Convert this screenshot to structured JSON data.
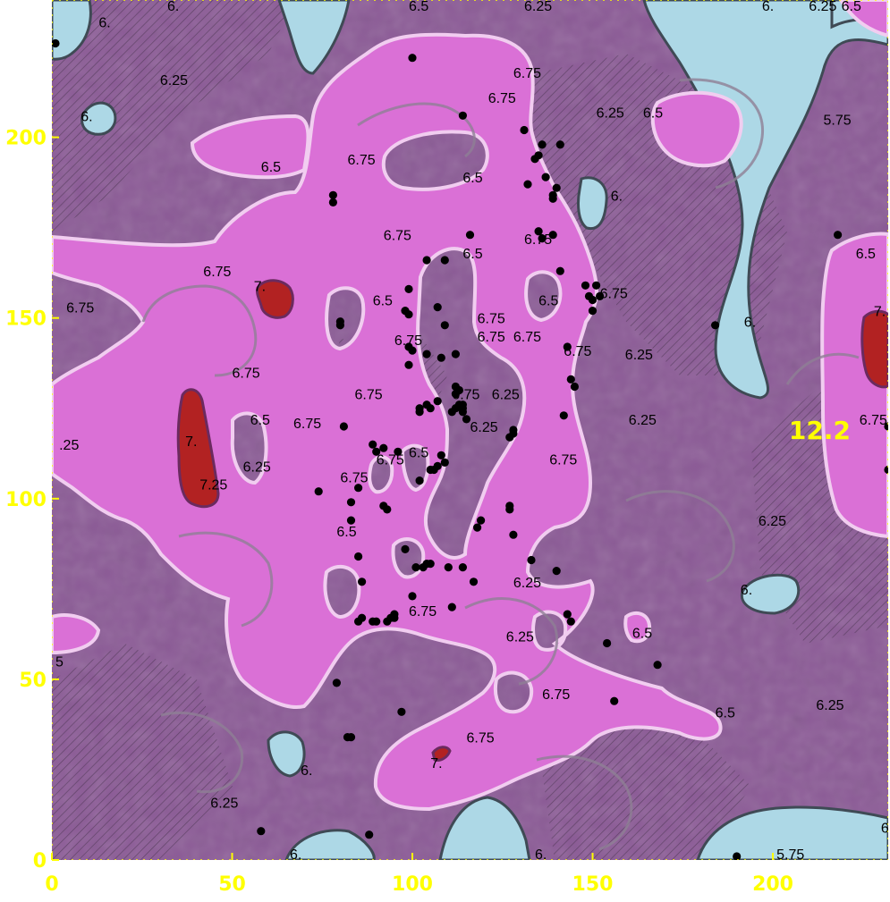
{
  "chart_data": {
    "type": "contour",
    "title": "",
    "xlabel": "",
    "ylabel": "",
    "xlim": [
      0,
      232
    ],
    "ylim": [
      0,
      238
    ],
    "x_ticks": [
      0,
      50,
      100,
      150,
      200
    ],
    "y_ticks": [
      0,
      50,
      100,
      150,
      200
    ],
    "grid": false,
    "legend": "none",
    "annotation": {
      "text": "12.2",
      "x": 213,
      "y": 119
    },
    "colors": {
      "level_lt_6": "#add8e6",
      "level_6_6_5": "#8b5a96",
      "level_6_5_7": "#da70d6",
      "level_gt_7": "#b22222",
      "tick_text": "#ffff00",
      "points": "#000000"
    },
    "contour_labels": [
      {
        "text": "6.25",
        "x": 30,
        "y": 216
      },
      {
        "text": "6.",
        "x": 8,
        "y": 206
      },
      {
        "text": "6.",
        "x": 13,
        "y": 232
      },
      {
        "text": "6.5",
        "x": 58,
        "y": 192
      },
      {
        "text": "6.75",
        "x": 82,
        "y": 194
      },
      {
        "text": "6.75",
        "x": 128,
        "y": 218
      },
      {
        "text": "6.75",
        "x": 121,
        "y": 211
      },
      {
        "text": "6.5",
        "x": 114,
        "y": 189
      },
      {
        "text": "6.25",
        "x": 151,
        "y": 207
      },
      {
        "text": "6.5",
        "x": 164,
        "y": 207
      },
      {
        "text": "5.75",
        "x": 214,
        "y": 205
      },
      {
        "text": "6.",
        "x": 155,
        "y": 184
      },
      {
        "text": "6.75",
        "x": 92,
        "y": 173
      },
      {
        "text": "6.5",
        "x": 114,
        "y": 168
      },
      {
        "text": "6.75",
        "x": 131,
        "y": 172
      },
      {
        "text": "6.5",
        "x": 223,
        "y": 168
      },
      {
        "text": "6.75",
        "x": 42,
        "y": 163
      },
      {
        "text": "7.",
        "x": 56,
        "y": 159
      },
      {
        "text": "6.75",
        "x": 4,
        "y": 153
      },
      {
        "text": "6.5",
        "x": 89,
        "y": 155
      },
      {
        "text": "6.5",
        "x": 135,
        "y": 155
      },
      {
        "text": "6.75",
        "x": 152,
        "y": 157
      },
      {
        "text": "6.75",
        "x": 118,
        "y": 150
      },
      {
        "text": "6.75",
        "x": 118,
        "y": 145
      },
      {
        "text": "6.75",
        "x": 128,
        "y": 145
      },
      {
        "text": "6.75",
        "x": 95,
        "y": 144
      },
      {
        "text": "6.",
        "x": 192,
        "y": 149
      },
      {
        "text": "7.",
        "x": 228,
        "y": 152
      },
      {
        "text": "6.75",
        "x": 142,
        "y": 141
      },
      {
        "text": "6.25",
        "x": 159,
        "y": 140
      },
      {
        "text": "6.75",
        "x": 50,
        "y": 135
      },
      {
        "text": "6.75",
        "x": 84,
        "y": 129
      },
      {
        "text": "6.75",
        "x": 111,
        "y": 129
      },
      {
        "text": "6.25",
        "x": 122,
        "y": 129
      },
      {
        "text": "6.5",
        "x": 55,
        "y": 122
      },
      {
        "text": "6.75",
        "x": 67,
        "y": 121
      },
      {
        "text": "6.25",
        "x": 116,
        "y": 120
      },
      {
        "text": "6.25",
        "x": 160,
        "y": 122
      },
      {
        "text": "6.75",
        "x": 224,
        "y": 122
      },
      {
        "text": "7.",
        "x": 37,
        "y": 116
      },
      {
        "text": "6.5",
        "x": 99,
        "y": 113
      },
      {
        "text": "6.75",
        "x": 90,
        "y": 111
      },
      {
        "text": "6.75",
        "x": 138,
        "y": 111
      },
      {
        "text": "6.25",
        "x": 53,
        "y": 109
      },
      {
        "text": ".25",
        "x": 2,
        "y": 115
      },
      {
        "text": "6.75",
        "x": 80,
        "y": 106
      },
      {
        "text": "7.25",
        "x": 41,
        "y": 104
      },
      {
        "text": "6.25",
        "x": 196,
        "y": 94
      },
      {
        "text": "6.5",
        "x": 79,
        "y": 91
      },
      {
        "text": "6.25",
        "x": 128,
        "y": 77
      },
      {
        "text": "6.",
        "x": 191,
        "y": 75
      },
      {
        "text": "6.75",
        "x": 99,
        "y": 69
      },
      {
        "text": "6.25",
        "x": 126,
        "y": 62
      },
      {
        "text": "6.5",
        "x": 161,
        "y": 63
      },
      {
        "text": "5",
        "x": 1,
        "y": 55
      },
      {
        "text": "6.75",
        "x": 136,
        "y": 46
      },
      {
        "text": "6.5",
        "x": 184,
        "y": 41
      },
      {
        "text": "6.25",
        "x": 212,
        "y": 43
      },
      {
        "text": "6.75",
        "x": 115,
        "y": 34
      },
      {
        "text": "7.",
        "x": 105,
        "y": 27
      },
      {
        "text": "6.",
        "x": 69,
        "y": 25
      },
      {
        "text": "6.25",
        "x": 44,
        "y": 16
      },
      {
        "text": "6",
        "x": 230,
        "y": 9
      },
      {
        "text": "5.75",
        "x": 201,
        "y": 0
      },
      {
        "text": "6.",
        "x": 66,
        "y": 0
      },
      {
        "text": "6.",
        "x": 134,
        "y": 0
      },
      {
        "text": "6.5",
        "x": 99,
        "y": 238
      },
      {
        "text": "6.25",
        "x": 131,
        "y": 238
      },
      {
        "text": "6.",
        "x": 32,
        "y": 238
      },
      {
        "text": "6.",
        "x": 197,
        "y": 238
      },
      {
        "text": "6.25",
        "x": 210,
        "y": 238
      },
      {
        "text": "6.5",
        "x": 219,
        "y": 238
      }
    ],
    "points": [
      [
        1,
        226
      ],
      [
        100,
        222
      ],
      [
        114,
        206
      ],
      [
        131,
        202
      ],
      [
        134,
        194
      ],
      [
        135,
        195
      ],
      [
        136,
        198
      ],
      [
        141,
        198
      ],
      [
        137,
        189
      ],
      [
        132,
        187
      ],
      [
        140,
        186
      ],
      [
        139,
        184
      ],
      [
        139,
        183
      ],
      [
        78,
        184
      ],
      [
        78,
        182
      ],
      [
        116,
        173
      ],
      [
        135,
        174
      ],
      [
        136,
        172
      ],
      [
        139,
        173
      ],
      [
        218,
        173
      ],
      [
        104,
        166
      ],
      [
        109,
        166
      ],
      [
        141,
        163
      ],
      [
        148,
        159
      ],
      [
        150,
        155
      ],
      [
        151,
        159
      ],
      [
        152,
        156
      ],
      [
        149,
        156
      ],
      [
        150,
        152
      ],
      [
        99,
        158
      ],
      [
        98,
        152
      ],
      [
        99,
        151
      ],
      [
        107,
        153
      ],
      [
        80,
        149
      ],
      [
        80,
        148
      ],
      [
        109,
        148
      ],
      [
        184,
        148
      ],
      [
        99,
        142
      ],
      [
        100,
        141
      ],
      [
        104,
        140
      ],
      [
        108,
        139
      ],
      [
        112,
        140
      ],
      [
        99,
        137
      ],
      [
        143,
        142
      ],
      [
        144,
        133
      ],
      [
        145,
        131
      ],
      [
        112,
        131
      ],
      [
        112,
        129
      ],
      [
        113,
        130
      ],
      [
        114,
        126
      ],
      [
        112,
        125
      ],
      [
        113,
        126
      ],
      [
        114,
        125
      ],
      [
        111,
        124
      ],
      [
        114,
        124
      ],
      [
        105,
        125
      ],
      [
        102,
        125
      ],
      [
        102,
        124
      ],
      [
        107,
        127
      ],
      [
        104,
        126
      ],
      [
        115,
        122
      ],
      [
        142,
        123
      ],
      [
        81,
        120
      ],
      [
        128,
        118
      ],
      [
        128,
        119
      ],
      [
        127,
        117
      ],
      [
        232,
        120
      ],
      [
        232,
        108
      ],
      [
        89,
        115
      ],
      [
        92,
        114
      ],
      [
        90,
        113
      ],
      [
        108,
        112
      ],
      [
        109,
        110
      ],
      [
        106,
        108
      ],
      [
        107,
        109
      ],
      [
        105,
        108
      ],
      [
        96,
        113
      ],
      [
        102,
        105
      ],
      [
        85,
        103
      ],
      [
        74,
        102
      ],
      [
        83,
        99
      ],
      [
        92,
        98
      ],
      [
        93,
        97
      ],
      [
        127,
        98
      ],
      [
        127,
        97
      ],
      [
        119,
        94
      ],
      [
        118,
        92
      ],
      [
        83,
        94
      ],
      [
        128,
        90
      ],
      [
        98,
        86
      ],
      [
        85,
        84
      ],
      [
        133,
        83
      ],
      [
        103,
        81
      ],
      [
        104,
        82
      ],
      [
        101,
        81
      ],
      [
        105,
        82
      ],
      [
        110,
        81
      ],
      [
        114,
        81
      ],
      [
        140,
        80
      ],
      [
        86,
        77
      ],
      [
        117,
        77
      ],
      [
        100,
        73
      ],
      [
        111,
        70
      ],
      [
        143,
        68
      ],
      [
        144,
        66
      ],
      [
        86,
        67
      ],
      [
        85,
        66
      ],
      [
        89,
        66
      ],
      [
        90,
        66
      ],
      [
        93,
        66
      ],
      [
        95,
        67
      ],
      [
        95,
        68
      ],
      [
        94,
        67
      ],
      [
        154,
        60
      ],
      [
        168,
        54
      ],
      [
        79,
        49
      ],
      [
        97,
        41
      ],
      [
        156,
        44
      ],
      [
        82,
        34
      ],
      [
        83,
        34
      ],
      [
        58,
        8
      ],
      [
        88,
        7
      ],
      [
        190,
        1
      ]
    ]
  }
}
